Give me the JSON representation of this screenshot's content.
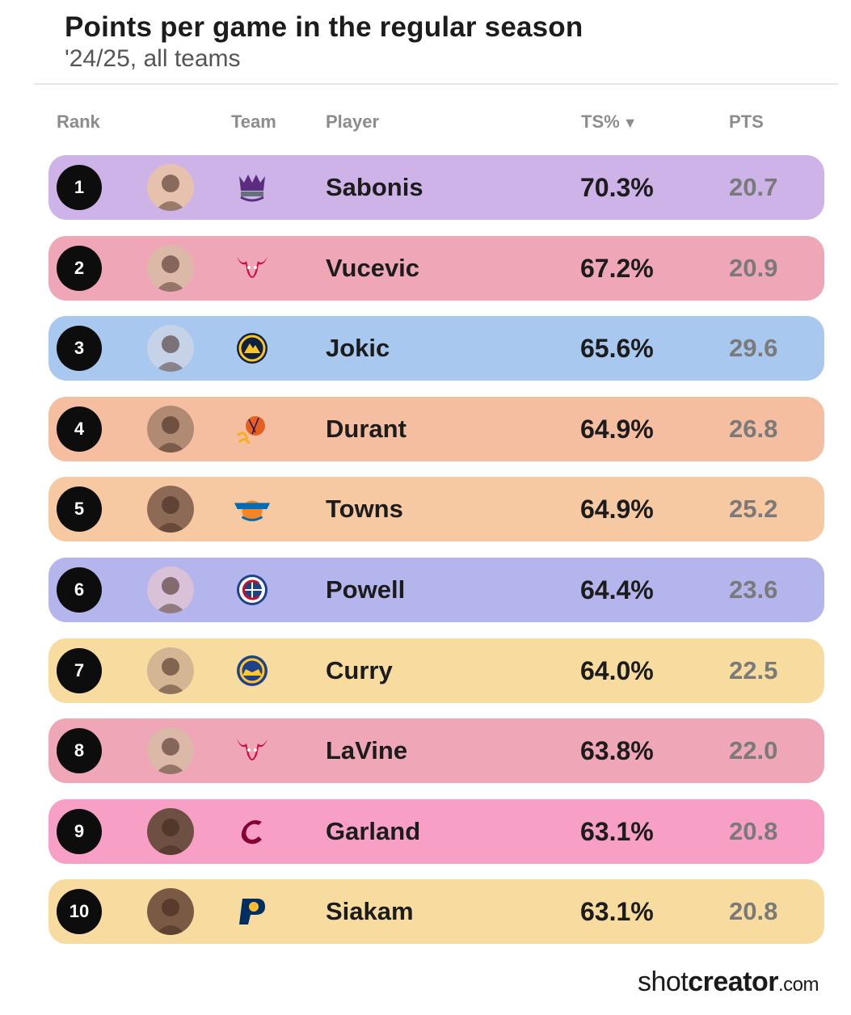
{
  "title": "Points per game in the regular season",
  "subtitle": "'24/25, all teams",
  "headers": {
    "rank": "Rank",
    "team": "Team",
    "player": "Player",
    "ts": "TS%",
    "ts_sort_glyph": "▼",
    "pts": "PTS"
  },
  "chart_data": {
    "type": "table",
    "title": "Points per game in the regular season",
    "subtitle": "'24/25, all teams",
    "columns": [
      "Rank",
      "Team",
      "Player",
      "TS%",
      "PTS"
    ],
    "sorted_by": "TS%",
    "sort_order": "descending",
    "rows": [
      {
        "rank": "1",
        "team": "Kings",
        "team_icon": "kings-logo-icon",
        "player": "Sabonis",
        "ts": "70.3%",
        "pts": "20.7",
        "color": "#cdb3e8"
      },
      {
        "rank": "2",
        "team": "Bulls",
        "team_icon": "bulls-logo-icon",
        "player": "Vucevic",
        "ts": "67.2%",
        "pts": "20.9",
        "color": "#efa6b7"
      },
      {
        "rank": "3",
        "team": "Nuggets",
        "team_icon": "nuggets-logo-icon",
        "player": "Jokic",
        "ts": "65.6%",
        "pts": "29.6",
        "color": "#a9c8ef"
      },
      {
        "rank": "4",
        "team": "Suns",
        "team_icon": "suns-logo-icon",
        "player": "Durant",
        "ts": "64.9%",
        "pts": "26.8",
        "color": "#f5bea1"
      },
      {
        "rank": "5",
        "team": "Knicks",
        "team_icon": "knicks-logo-icon",
        "player": "Towns",
        "ts": "64.9%",
        "pts": "25.2",
        "color": "#f6c9a2"
      },
      {
        "rank": "6",
        "team": "Clippers",
        "team_icon": "clippers-logo-icon",
        "player": "Powell",
        "ts": "64.4%",
        "pts": "23.6",
        "color": "#b4b5ec"
      },
      {
        "rank": "7",
        "team": "Warriors",
        "team_icon": "warriors-logo-icon",
        "player": "Curry",
        "ts": "64.0%",
        "pts": "22.5",
        "color": "#f8dc9f"
      },
      {
        "rank": "8",
        "team": "Bulls",
        "team_icon": "bulls-logo-icon",
        "player": "LaVine",
        "ts": "63.8%",
        "pts": "22.0",
        "color": "#efa6b7"
      },
      {
        "rank": "9",
        "team": "Cavaliers",
        "team_icon": "cavaliers-logo-icon",
        "player": "Garland",
        "ts": "63.1%",
        "pts": "20.8",
        "color": "#f89fc6"
      },
      {
        "rank": "10",
        "team": "Pacers",
        "team_icon": "pacers-logo-icon",
        "player": "Siakam",
        "ts": "63.1%",
        "pts": "20.8",
        "color": "#f8dc9f"
      }
    ]
  },
  "footer": {
    "part1": "shot",
    "part2": "creator",
    "part3": ".com"
  }
}
